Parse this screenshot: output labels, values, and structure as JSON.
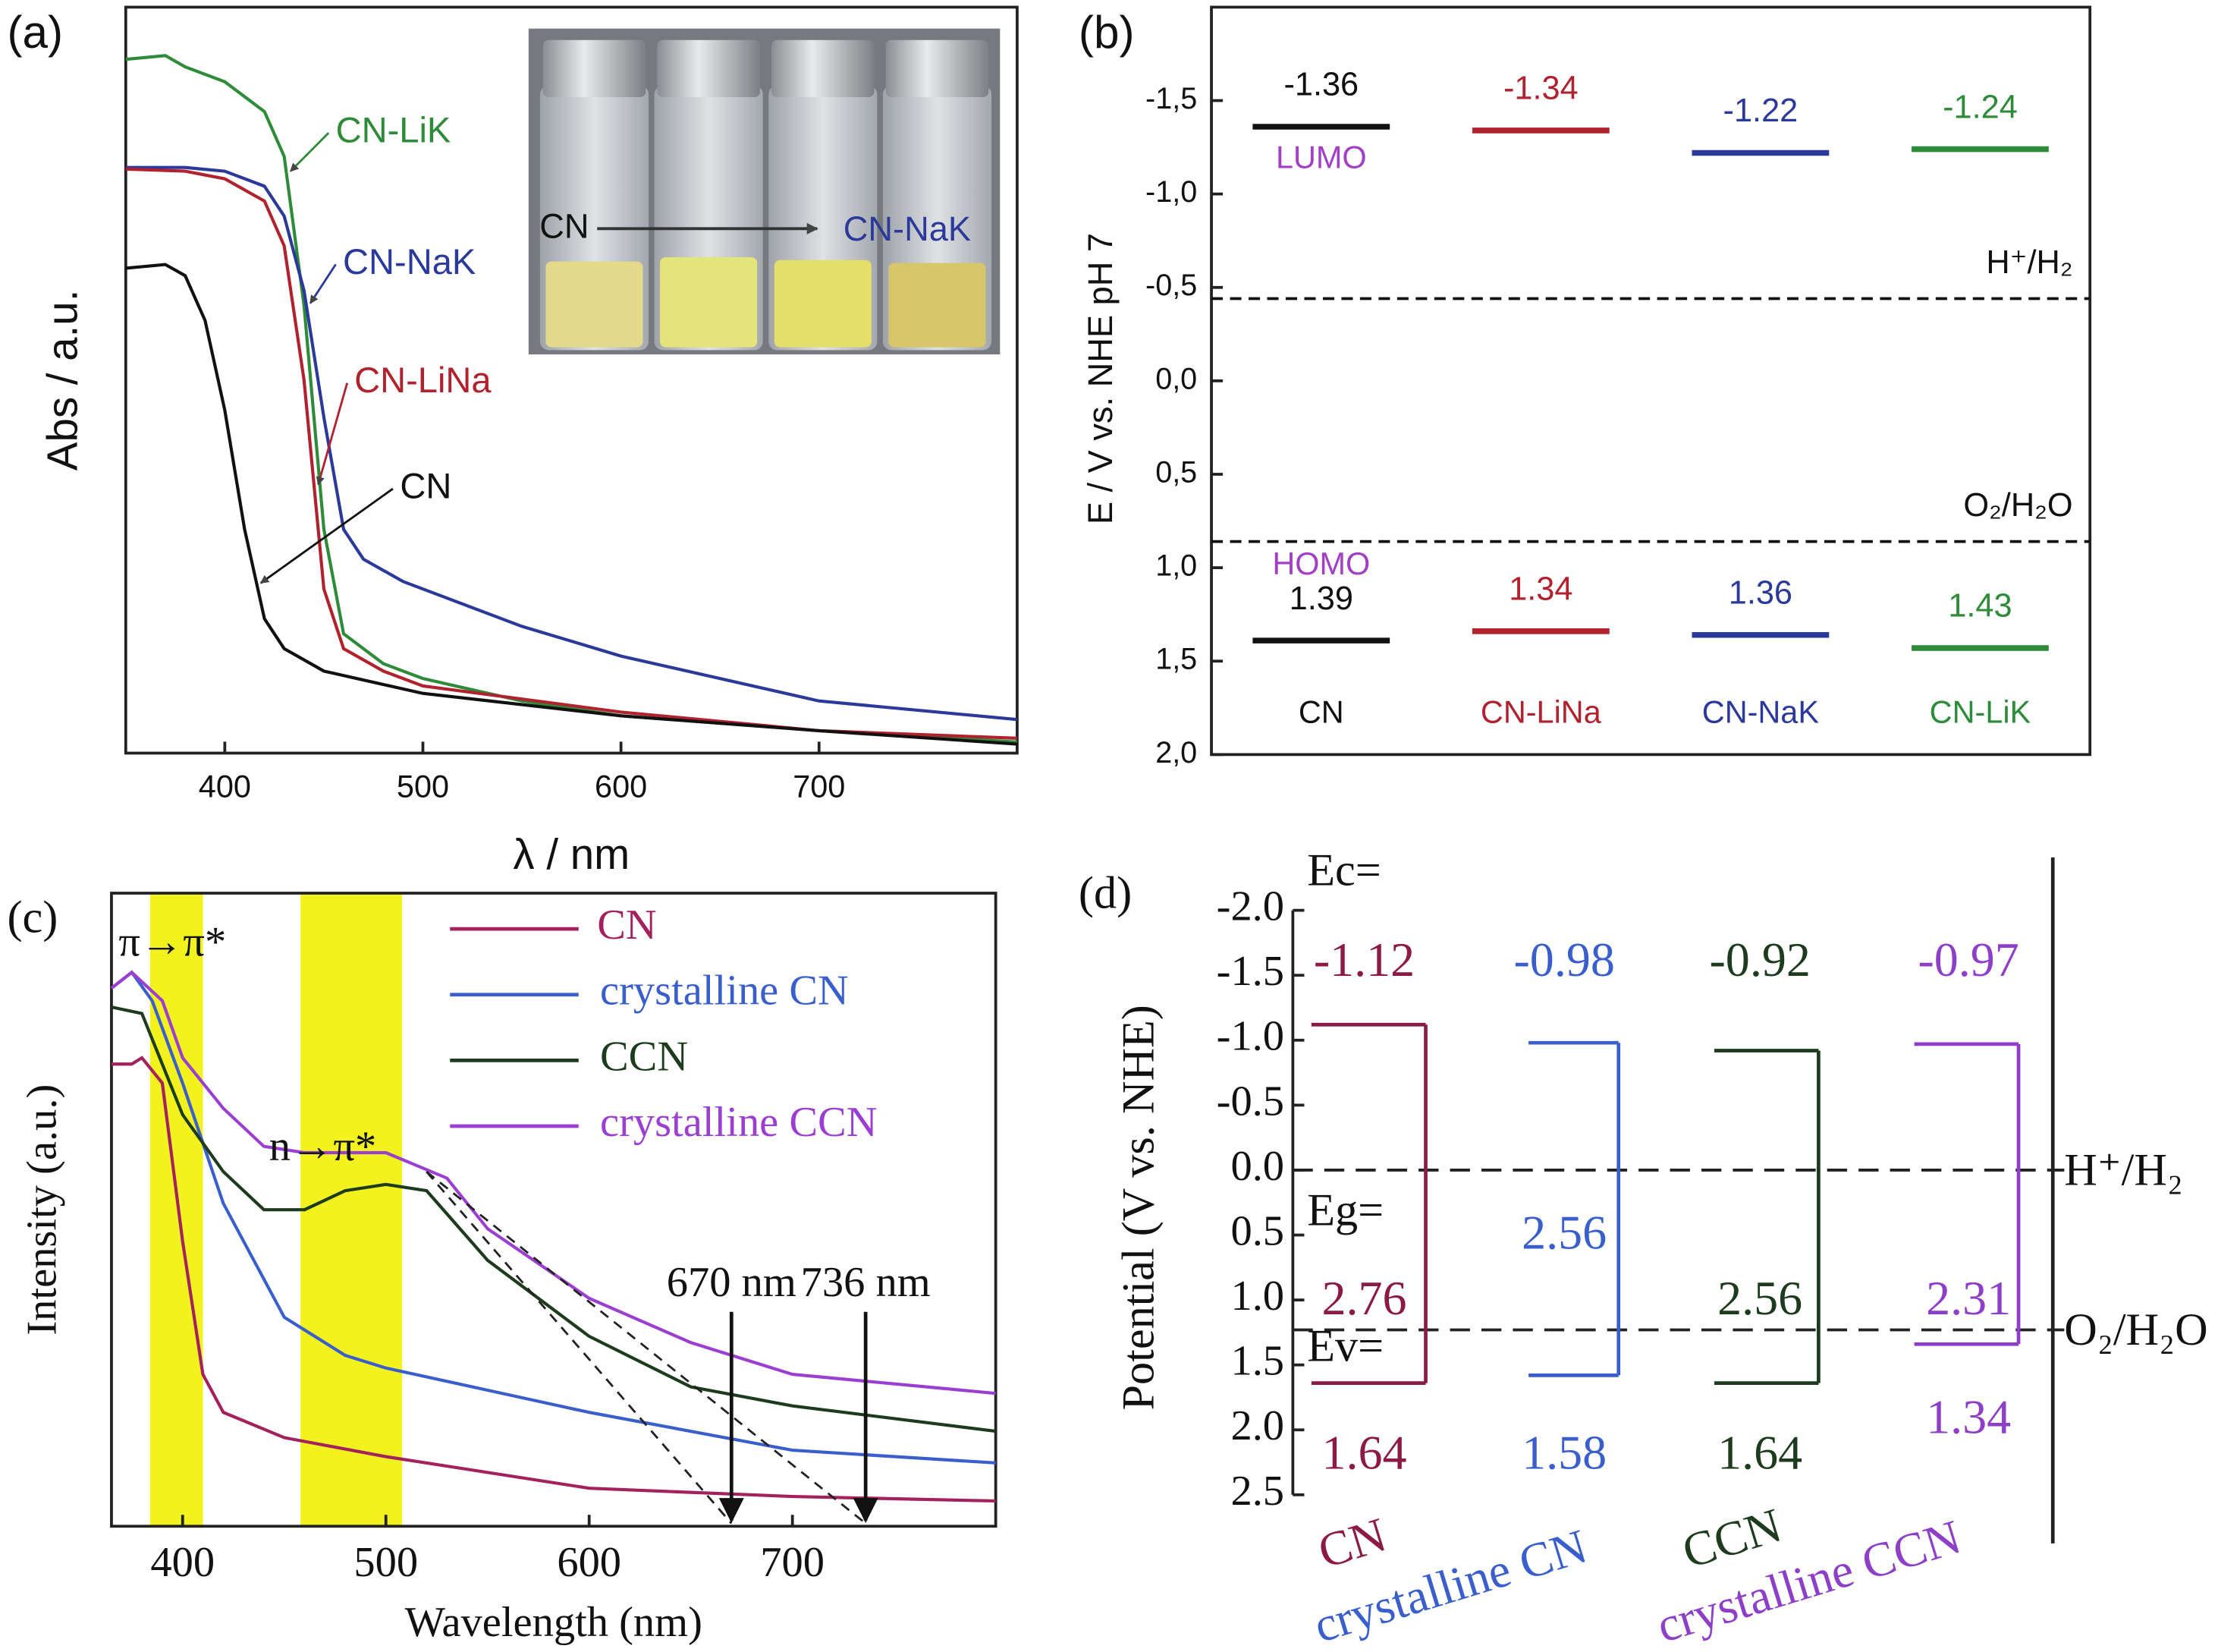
{
  "chart_data": [
    {
      "type": "line",
      "panel_label": "(a)",
      "xlabel": "λ / nm",
      "ylabel": "Abs / a.u.",
      "xlim": [
        350,
        800
      ],
      "xticks": [
        400,
        500,
        600,
        700
      ],
      "ylim": [
        0,
        1
      ],
      "legend": "callout",
      "inset_labels": [
        "CN",
        "CN-NaK"
      ],
      "series": [
        {
          "name": "CN-LiK",
          "color": "#2e8b3a",
          "x": [
            350,
            370,
            380,
            400,
            420,
            430,
            440,
            450,
            460,
            480,
            500,
            550,
            600,
            700,
            800
          ],
          "values": [
            0.93,
            0.935,
            0.92,
            0.9,
            0.86,
            0.8,
            0.6,
            0.3,
            0.16,
            0.12,
            0.1,
            0.07,
            0.05,
            0.03,
            0.015
          ]
        },
        {
          "name": "CN-NaK",
          "color": "#2b3a9a",
          "x": [
            350,
            380,
            400,
            420,
            430,
            440,
            450,
            460,
            470,
            490,
            550,
            600,
            700,
            800
          ],
          "values": [
            0.785,
            0.785,
            0.78,
            0.76,
            0.72,
            0.62,
            0.45,
            0.3,
            0.26,
            0.23,
            0.17,
            0.13,
            0.07,
            0.045
          ]
        },
        {
          "name": "CN-LiNa",
          "color": "#b0222e",
          "x": [
            350,
            380,
            400,
            420,
            430,
            440,
            450,
            460,
            480,
            500,
            600,
            700,
            800
          ],
          "values": [
            0.783,
            0.78,
            0.77,
            0.74,
            0.68,
            0.5,
            0.22,
            0.14,
            0.11,
            0.09,
            0.055,
            0.03,
            0.02
          ]
        },
        {
          "name": "CN",
          "color": "#111111",
          "x": [
            350,
            370,
            380,
            390,
            400,
            410,
            420,
            430,
            450,
            500,
            600,
            700,
            800
          ],
          "values": [
            0.65,
            0.655,
            0.64,
            0.58,
            0.46,
            0.3,
            0.18,
            0.14,
            0.11,
            0.08,
            0.05,
            0.03,
            0.012
          ]
        }
      ]
    },
    {
      "type": "levels",
      "panel_label": "(b)",
      "ylabel": "E / V vs. NHE pH 7",
      "ylim": [
        2.0,
        -2.0
      ],
      "yticks": [
        {
          "value": -1.5,
          "label": "-1,5"
        },
        {
          "value": -1.0,
          "label": "-1,0"
        },
        {
          "value": -0.5,
          "label": "-0,5"
        },
        {
          "value": 0,
          "label": "0,0"
        },
        {
          "value": 0.5,
          "label": "0,5"
        },
        {
          "value": 1.0,
          "label": "1,0"
        },
        {
          "value": 1.5,
          "label": "1,5"
        },
        {
          "value": 2.0,
          "label": "2,0"
        }
      ],
      "categories": [
        "CN",
        "CN-LiNa",
        "CN-NaK",
        "CN-LiK"
      ],
      "colors": [
        "#111111",
        "#b0222e",
        "#2b3a9a",
        "#2e8b3a"
      ],
      "label_color": "#a23fc4",
      "series": [
        {
          "name": "LUMO",
          "values": [
            -1.36,
            -1.34,
            -1.22,
            -1.24
          ]
        },
        {
          "name": "HOMO",
          "values": [
            1.39,
            1.34,
            1.36,
            1.43
          ]
        }
      ],
      "reference_lines": [
        {
          "label": "H⁺/H₂",
          "value": -0.44
        },
        {
          "label": "O₂/H₂O",
          "value": 0.86
        }
      ]
    },
    {
      "type": "line",
      "panel_label": "(c)",
      "xlabel": "Wavelength (nm)",
      "ylabel": "Intensity (a.u.)",
      "xlim": [
        365,
        800
      ],
      "xticks": [
        400,
        500,
        600,
        700
      ],
      "ylim": [
        0,
        1
      ],
      "legend": "upper right",
      "bands": [
        {
          "label": "π→π*",
          "range": [
            384,
            410
          ]
        },
        {
          "label": "n→π*",
          "range": [
            458,
            508
          ]
        }
      ],
      "annotations": [
        {
          "value": 670,
          "label": "670 nm"
        },
        {
          "value": 736,
          "label": "736 nm"
        }
      ],
      "series": [
        {
          "name": "CN",
          "color": "#a3215c",
          "x": [
            365,
            375,
            380,
            390,
            400,
            410,
            420,
            450,
            500,
            600,
            700,
            800
          ],
          "values": [
            0.73,
            0.73,
            0.74,
            0.7,
            0.45,
            0.24,
            0.18,
            0.14,
            0.11,
            0.06,
            0.047,
            0.04
          ]
        },
        {
          "name": "crystalline CN",
          "color": "#3a5fcd",
          "x": [
            365,
            375,
            385,
            400,
            420,
            450,
            480,
            500,
            600,
            700,
            800
          ],
          "values": [
            0.85,
            0.875,
            0.83,
            0.7,
            0.51,
            0.33,
            0.27,
            0.25,
            0.18,
            0.12,
            0.1
          ]
        },
        {
          "name": "CCN",
          "color": "#1d3b1d",
          "x": [
            365,
            380,
            400,
            420,
            440,
            460,
            480,
            500,
            520,
            550,
            600,
            650,
            700,
            800
          ],
          "values": [
            0.82,
            0.81,
            0.65,
            0.56,
            0.5,
            0.5,
            0.53,
            0.54,
            0.53,
            0.42,
            0.3,
            0.22,
            0.19,
            0.15
          ]
        },
        {
          "name": "crystalline CCN",
          "color": "#9b3fd3",
          "x": [
            365,
            375,
            390,
            400,
            420,
            440,
            460,
            500,
            530,
            550,
            600,
            650,
            700,
            800
          ],
          "values": [
            0.85,
            0.875,
            0.83,
            0.74,
            0.66,
            0.6,
            0.59,
            0.59,
            0.55,
            0.47,
            0.36,
            0.29,
            0.24,
            0.21
          ]
        }
      ]
    },
    {
      "type": "bandgap",
      "panel_label": "(d)",
      "ylabel": "Potential (V vs. NHE)",
      "ylim": [
        2.5,
        -2.0
      ],
      "yticks": [
        {
          "value": -2,
          "label": "-2.0"
        },
        -1.5,
        {
          "value": -1,
          "label": "-1.0"
        },
        -0.5,
        {
          "value": 0,
          "label": "0.0"
        },
        0.5,
        {
          "value": 1,
          "label": "1.0"
        },
        1.5,
        {
          "value": 2,
          "label": "2.0"
        },
        2.5
      ],
      "categories": [
        "CN",
        "crystalline CN",
        "CCN",
        "crystalline CCN"
      ],
      "colors": [
        "#8b1a44",
        "#3a5fcd",
        "#1d3b1d",
        "#8e3fc8"
      ],
      "series": [
        {
          "name": "Ec=",
          "values": [
            -1.12,
            -0.98,
            -0.92,
            -0.97
          ]
        },
        {
          "name": "Eg=",
          "values": [
            2.76,
            2.56,
            2.56,
            2.31
          ]
        },
        {
          "name": "Ev=",
          "values": [
            1.64,
            1.58,
            1.64,
            1.34
          ]
        }
      ],
      "reference_lines": [
        {
          "label": "H⁺/H₂",
          "value": 0
        },
        {
          "label": "O₂/H₂O",
          "value": 1.23
        }
      ]
    }
  ]
}
